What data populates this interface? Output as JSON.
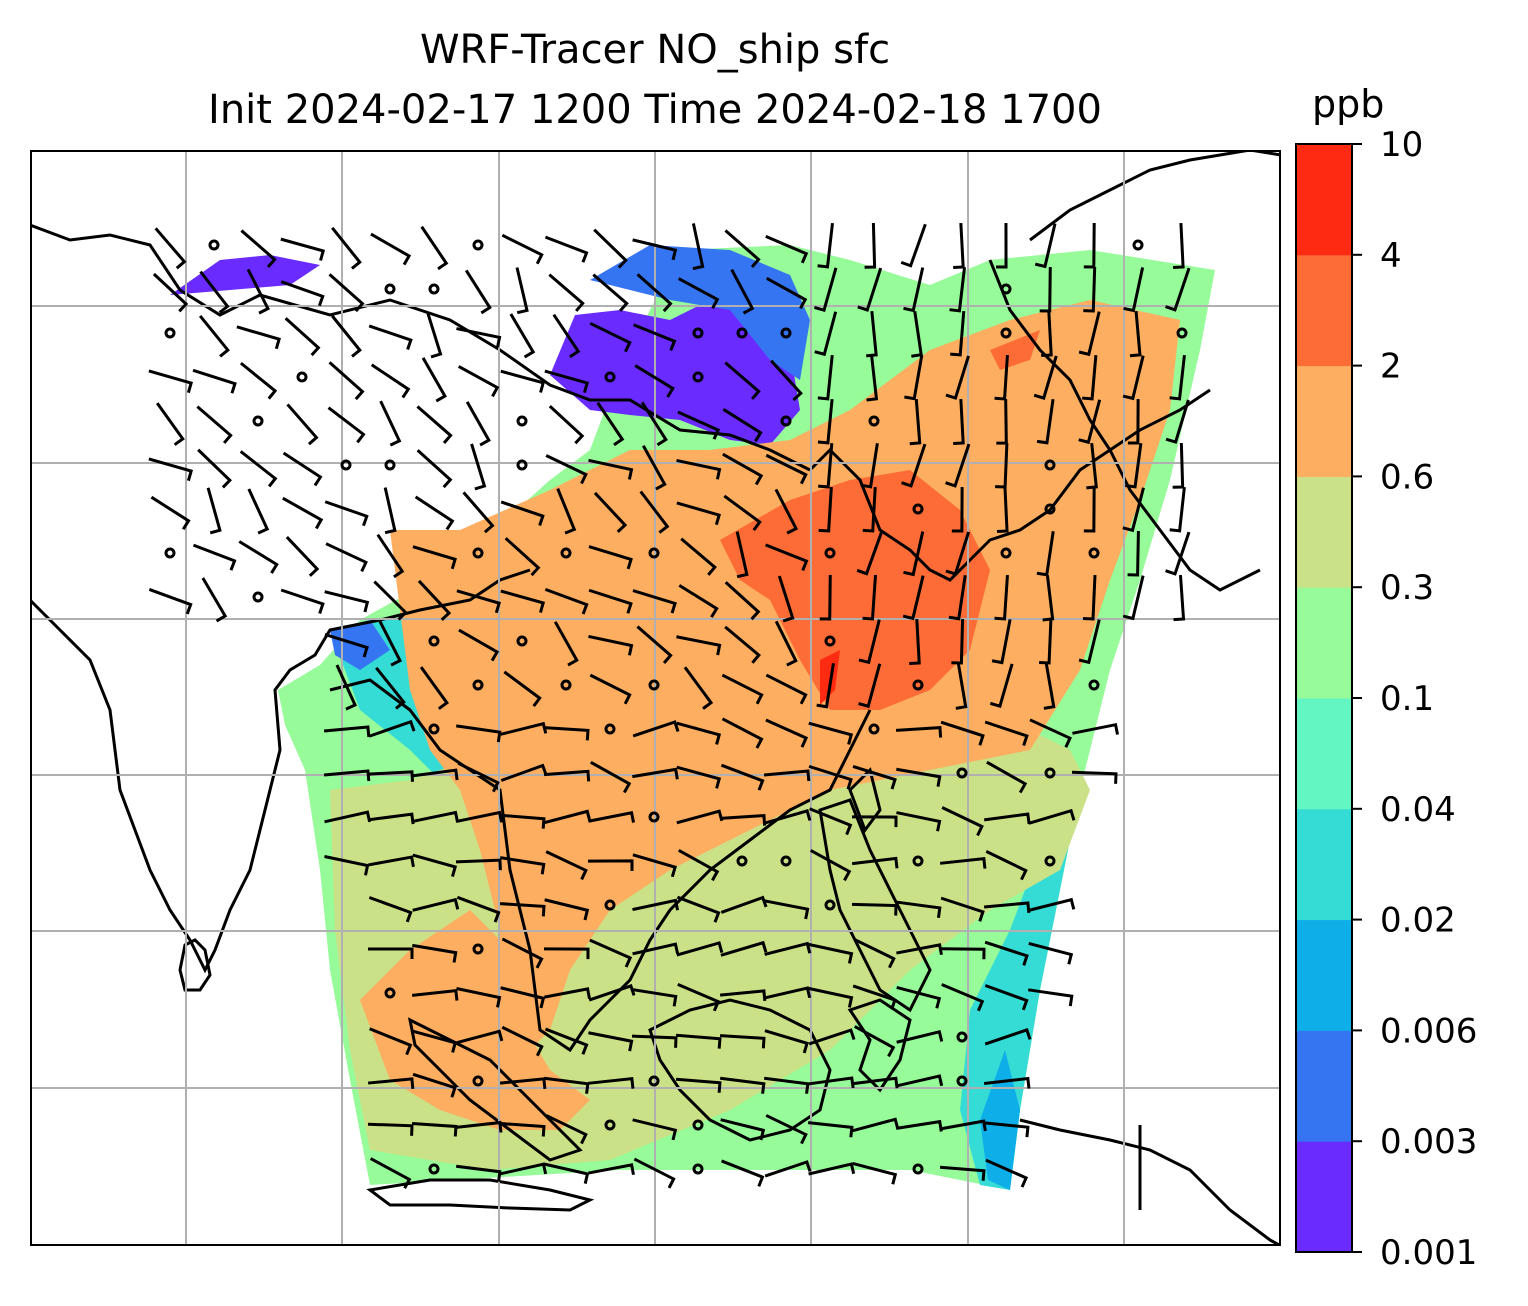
{
  "title": {
    "line1": "WRF-Tracer NO_ship sfc",
    "line2": "Init 2024-02-17 1200 Time 2024-02-18 1700"
  },
  "colorbar": {
    "unit": "ppb",
    "levels": [
      "0.001",
      "0.003",
      "0.006",
      "0.02",
      "0.04",
      "0.1",
      "0.3",
      "0.6",
      "2",
      "4",
      "10"
    ],
    "colors": [
      "#6a2bff",
      "#3575f2",
      "#0eaee8",
      "#35dcd6",
      "#63f6c2",
      "#97fb99",
      "#cbe187",
      "#fdae60",
      "#fd6c36",
      "#fe2b12"
    ]
  },
  "map": {
    "background": "#ffffff",
    "coastline_color": "#000000",
    "gridline_color": "#b0b0b0"
  }
}
